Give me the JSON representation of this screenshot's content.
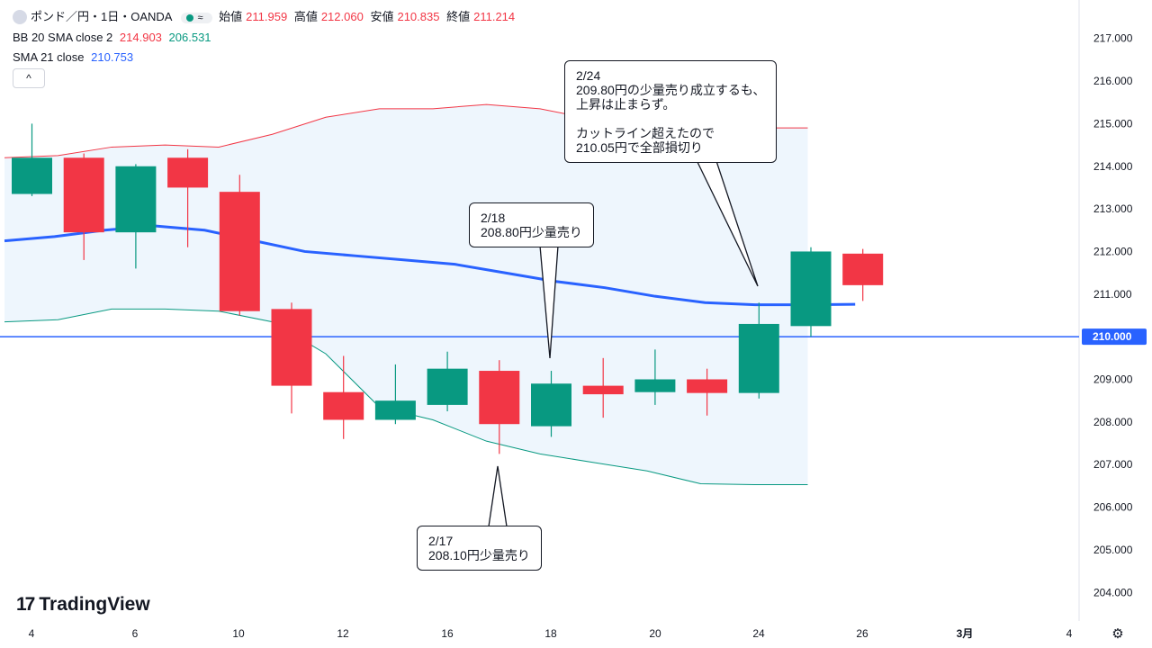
{
  "header": {
    "symbol": "ポンド／円・1日・OANDA",
    "indicator_icon": "≈",
    "ohlc": [
      {
        "label": "始値",
        "value": "211.959"
      },
      {
        "label": "高値",
        "value": "212.060"
      },
      {
        "label": "安値",
        "value": "210.835"
      },
      {
        "label": "終値",
        "value": "211.214"
      }
    ],
    "bb": {
      "label": "BB 20 SMA close 2",
      "upper": "214.903",
      "lower": "206.531"
    },
    "sma": {
      "label": "SMA 21 close",
      "value": "210.753"
    },
    "collapse_icon": "^"
  },
  "colors": {
    "up": "#089981",
    "down": "#f23645",
    "sma": "#2962ff",
    "bb_upper": "#f23645",
    "bb_lower": "#089981",
    "bb_fill": "#eef6fd"
  },
  "logo_text": "TradingView",
  "price_line_label": "210.000",
  "chart_data": {
    "type": "candlestick",
    "y_axis": {
      "min": 203.5,
      "max": 217.5,
      "ticks": [
        "204.000",
        "205.000",
        "206.000",
        "207.000",
        "208.000",
        "209.000",
        "210.000",
        "211.000",
        "212.000",
        "213.000",
        "214.000",
        "215.000",
        "216.000",
        "217.000"
      ]
    },
    "x_axis": {
      "ticks": [
        "4",
        "6",
        "10",
        "12",
        "16",
        "18",
        "20",
        "24",
        "26",
        "3月",
        "4"
      ]
    },
    "candles": [
      {
        "date": "2/4",
        "open": 213.35,
        "high": 215.0,
        "low": 213.3,
        "close": 214.2
      },
      {
        "date": "2/5",
        "open": 214.2,
        "high": 214.3,
        "low": 211.8,
        "close": 212.45
      },
      {
        "date": "2/6",
        "open": 212.45,
        "high": 214.05,
        "low": 211.6,
        "close": 214.0
      },
      {
        "date": "2/7",
        "open": 214.2,
        "high": 214.4,
        "low": 212.1,
        "close": 213.5
      },
      {
        "date": "2/10",
        "open": 213.4,
        "high": 213.8,
        "low": 210.5,
        "close": 210.6
      },
      {
        "date": "2/11",
        "open": 210.65,
        "high": 210.8,
        "low": 208.2,
        "close": 208.85
      },
      {
        "date": "2/12",
        "open": 208.7,
        "high": 209.55,
        "low": 207.6,
        "close": 208.05
      },
      {
        "date": "2/13",
        "open": 208.05,
        "high": 209.35,
        "low": 207.95,
        "close": 208.5
      },
      {
        "date": "2/14",
        "open": 208.4,
        "high": 209.65,
        "low": 208.25,
        "close": 209.25
      },
      {
        "date": "2/17",
        "open": 209.2,
        "high": 209.45,
        "low": 207.25,
        "close": 207.95
      },
      {
        "date": "2/18",
        "open": 207.9,
        "high": 209.2,
        "low": 207.65,
        "close": 208.9
      },
      {
        "date": "2/19",
        "open": 208.85,
        "high": 209.5,
        "low": 208.1,
        "close": 208.65
      },
      {
        "date": "2/20",
        "open": 208.7,
        "high": 209.7,
        "low": 208.4,
        "close": 209.0
      },
      {
        "date": "2/21",
        "open": 209.0,
        "high": 209.25,
        "low": 208.15,
        "close": 208.68
      },
      {
        "date": "2/24",
        "open": 208.68,
        "high": 210.8,
        "low": 208.55,
        "close": 210.3
      },
      {
        "date": "2/25",
        "open": 210.25,
        "high": 212.1,
        "low": 210.0,
        "close": 212.0
      },
      {
        "date": "2/26",
        "open": 211.95,
        "high": 212.06,
        "low": 210.84,
        "close": 211.21
      }
    ],
    "sma21": [
      212.25,
      212.35,
      212.5,
      212.6,
      212.5,
      212.25,
      212.0,
      211.9,
      211.8,
      211.7,
      211.5,
      211.3,
      211.15,
      210.95,
      210.8,
      210.75,
      210.75,
      210.76
    ],
    "bb_upper": [
      214.2,
      214.25,
      214.45,
      214.5,
      214.45,
      214.75,
      215.15,
      215.35,
      215.35,
      215.45,
      215.35,
      215.1,
      214.95,
      214.85,
      214.9,
      214.9
    ],
    "bb_lower": [
      210.35,
      210.4,
      210.65,
      210.65,
      210.6,
      210.35,
      209.6,
      208.35,
      208.05,
      207.55,
      207.25,
      207.05,
      206.85,
      206.55,
      206.53,
      206.53
    ],
    "horizontal_line": 210.0,
    "annotations": [
      {
        "text": "2/24\n209.80円の少量売り成立するも、\n上昇は止まらず。\n\nカットライン超えたので\n210.05円で全部損切り"
      },
      {
        "text": "2/18\n208.80円少量売り"
      },
      {
        "text": "2/17\n208.10円少量売り"
      }
    ]
  }
}
